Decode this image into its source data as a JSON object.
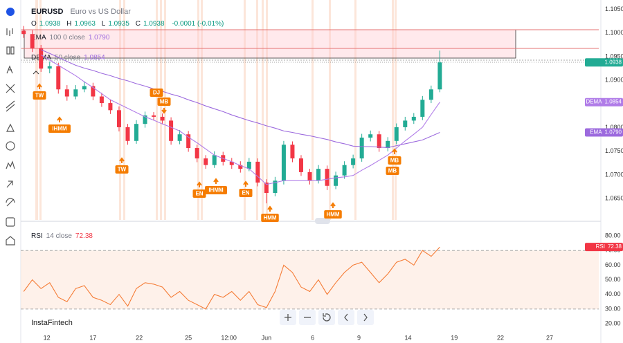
{
  "chart_data": [
    {
      "type": "candlestick",
      "symbol": "EURUSD",
      "description": "Euro vs US Dollar",
      "ohlc": [
        {
          "label": "O",
          "value": 1.0938
        },
        {
          "label": "H",
          "value": 1.0963
        },
        {
          "label": "L",
          "value": 1.0935
        },
        {
          "label": "C",
          "value": 1.0938
        }
      ],
      "change": "-0.0001 (-0.01%)",
      "up_color": "#22ab94",
      "down_color": "#f23645",
      "x": [
        0,
        3,
        6,
        9,
        12,
        15,
        18,
        21,
        24,
        27,
        30,
        33,
        36,
        39,
        42,
        45,
        48,
        51,
        54,
        57,
        60,
        63,
        66,
        69,
        72,
        75,
        78,
        81,
        84,
        87,
        90,
        93,
        96,
        99,
        102,
        105,
        108,
        111,
        114,
        117,
        120,
        123,
        126,
        129,
        132,
        135,
        138,
        141,
        144
      ],
      "open": [
        1.1005,
        1.0998,
        1.0968,
        1.0925,
        1.093,
        1.0881,
        1.0866,
        1.0881,
        1.0888,
        1.0866,
        1.0852,
        1.0837,
        1.0801,
        1.0772,
        1.0808,
        1.0826,
        1.0823,
        1.0815,
        1.0772,
        1.0786,
        1.0757,
        1.0735,
        1.0721,
        1.0742,
        1.0728,
        1.0721,
        1.0713,
        1.0728,
        1.0684,
        1.0662,
        1.0688,
        1.0764,
        1.0735,
        1.0706,
        1.0688,
        1.0713,
        1.0677,
        1.0699,
        1.0721,
        1.0735,
        1.0779,
        1.0786,
        1.0757,
        1.0772,
        1.0801,
        1.0815,
        1.0823,
        1.0859,
        1.0881
      ],
      "high": [
        1.1015,
        1.1006,
        1.0975,
        1.094,
        1.0937,
        1.089,
        1.089,
        1.0898,
        1.0895,
        1.0874,
        1.086,
        1.0845,
        1.0808,
        1.0816,
        1.0834,
        1.0833,
        1.083,
        1.0822,
        1.0795,
        1.0793,
        1.0764,
        1.0742,
        1.075,
        1.0749,
        1.0736,
        1.0729,
        1.0736,
        1.0735,
        1.0691,
        1.0696,
        1.0772,
        1.0771,
        1.0742,
        1.0713,
        1.0721,
        1.072,
        1.0707,
        1.0729,
        1.0743,
        1.0787,
        1.0794,
        1.0793,
        1.078,
        1.0809,
        1.0823,
        1.0831,
        1.0867,
        1.0889,
        1.0963
      ],
      "low": [
        1.099,
        1.096,
        1.0918,
        1.0915,
        1.0872,
        1.0857,
        1.086,
        1.0875,
        1.0858,
        1.0844,
        1.0829,
        1.0792,
        1.0764,
        1.0766,
        1.08,
        1.0815,
        1.0807,
        1.0764,
        1.0765,
        1.0749,
        1.0727,
        1.0713,
        1.0715,
        1.072,
        1.0713,
        1.0705,
        1.0708,
        1.0676,
        1.064,
        1.0655,
        1.068,
        1.0727,
        1.0698,
        1.068,
        1.0682,
        1.0668,
        1.067,
        1.0692,
        1.0714,
        1.0728,
        1.0771,
        1.0749,
        1.075,
        1.0765,
        1.0794,
        1.0808,
        1.0816,
        1.0852,
        1.0875
      ],
      "close": [
        1.0998,
        1.0968,
        1.0925,
        1.093,
        1.0881,
        1.0866,
        1.0881,
        1.0888,
        1.0866,
        1.0852,
        1.0837,
        1.0801,
        1.0772,
        1.0808,
        1.0826,
        1.0823,
        1.0815,
        1.0772,
        1.0786,
        1.0757,
        1.0735,
        1.0721,
        1.0742,
        1.0728,
        1.0721,
        1.0713,
        1.0728,
        1.0684,
        1.0662,
        1.0688,
        1.0764,
        1.0735,
        1.0706,
        1.0688,
        1.0713,
        1.0677,
        1.0699,
        1.0721,
        1.0735,
        1.0779,
        1.0786,
        1.0757,
        1.0772,
        1.0801,
        1.0815,
        1.0823,
        1.0859,
        1.0881,
        1.0938
      ],
      "series": [
        {
          "name": "EMA",
          "params": "100 0 close",
          "last_label": "1.0790",
          "color": "#9c6ade",
          "values": [
            null,
            null,
            1.0965,
            1.0957,
            1.0949,
            1.094,
            1.0932,
            1.0926,
            1.0921,
            1.0915,
            1.091,
            1.0904,
            1.0899,
            1.0893,
            1.0888,
            1.0882,
            1.0877,
            1.0871,
            1.0866,
            1.0859,
            1.0853,
            1.0846,
            1.084,
            1.0834,
            1.0827,
            1.0821,
            1.0815,
            1.081,
            1.0804,
            1.0799,
            1.0793,
            1.079,
            1.0786,
            1.0783,
            1.0779,
            1.0775,
            1.077,
            1.0766,
            1.0761,
            1.076,
            1.076,
            1.0759,
            1.0758,
            1.0762,
            1.0766,
            1.077,
            1.0774,
            1.0782,
            1.079
          ]
        },
        {
          "name": "DEMA",
          "params": "50 close",
          "last_label": "1.0854",
          "color": "#b07ce8",
          "values": [
            null,
            null,
            1.0954,
            1.0943,
            1.0932,
            1.0921,
            1.091,
            1.0897,
            1.0885,
            1.0872,
            1.0859,
            1.085,
            1.0841,
            1.0832,
            1.0823,
            1.0816,
            1.0808,
            1.0801,
            1.0793,
            1.078,
            1.0768,
            1.0755,
            1.0742,
            1.0735,
            1.0728,
            1.072,
            1.0713,
            1.0697,
            1.068,
            1.0684,
            1.0688,
            1.0688,
            1.0688,
            1.0688,
            1.0688,
            1.0691,
            1.0694,
            1.0696,
            1.0699,
            1.071,
            1.072,
            1.0731,
            1.0742,
            1.0757,
            1.0772,
            1.0786,
            1.0801,
            1.0828,
            1.0854
          ]
        }
      ],
      "xlim": [
        -1,
        199
      ],
      "xticks": [
        {
          "value": 8,
          "label": "12"
        },
        {
          "value": 24,
          "label": "17"
        },
        {
          "value": 40,
          "label": "22"
        },
        {
          "value": 57,
          "label": "25"
        },
        {
          "value": 71,
          "label": "12:00"
        },
        {
          "value": 84,
          "label": "Jun"
        },
        {
          "value": 100,
          "label": "6"
        },
        {
          "value": 116,
          "label": "9"
        },
        {
          "value": 133,
          "label": "14"
        },
        {
          "value": 149,
          "label": "19"
        },
        {
          "value": 165,
          "label": "22"
        },
        {
          "value": 182,
          "label": "27"
        }
      ],
      "ylim": [
        1.0605,
        1.107
      ],
      "yticks": [
        {
          "value": 1.105,
          "label": "1.1050"
        },
        {
          "value": 1.1,
          "label": "1.1000"
        },
        {
          "value": 1.095,
          "label": "1.0950"
        },
        {
          "value": 1.09,
          "label": "1.0900"
        },
        {
          "value": 1.085,
          "label": "1.0850"
        },
        {
          "value": 1.08,
          "label": "1.0800"
        },
        {
          "value": 1.075,
          "label": "1.0750"
        },
        {
          "value": 1.07,
          "label": "1.0700"
        },
        {
          "value": 1.065,
          "label": "1.0650"
        }
      ],
      "grid": false,
      "annotations": [
        "TW",
        "IHMM",
        "TW",
        "DJ",
        "MB",
        "EN",
        "IHMM",
        "EN",
        "HMM",
        "HMM",
        "MB",
        "MB"
      ]
    },
    {
      "type": "line",
      "name": "RSI",
      "params": "14 close",
      "color": "#f57c36",
      "values": [
        42,
        50,
        44,
        48,
        38,
        35,
        44,
        46,
        38,
        36,
        33,
        40,
        32,
        44,
        48,
        47,
        45,
        38,
        42,
        36,
        33,
        30,
        40,
        38,
        42,
        36,
        42,
        33,
        31,
        42,
        60,
        55,
        45,
        42,
        50,
        40,
        48,
        55,
        60,
        62,
        55,
        48,
        54,
        62,
        64,
        60,
        70,
        66,
        72.38
      ],
      "ylim": [
        6.8,
        89
      ],
      "yticks": [
        {
          "value": 80,
          "label": "80.00"
        },
        {
          "value": 70,
          "label": "70.00"
        },
        {
          "value": 60,
          "label": "60.00"
        },
        {
          "value": 50,
          "label": "50.00"
        },
        {
          "value": 40,
          "label": "40.00"
        },
        {
          "value": 30,
          "label": "30.00"
        },
        {
          "value": 20,
          "label": "20.00"
        }
      ],
      "levels": [
        30,
        70
      ],
      "badge_color": "#f23645"
    }
  ],
  "watermark": "InstaFintech"
}
